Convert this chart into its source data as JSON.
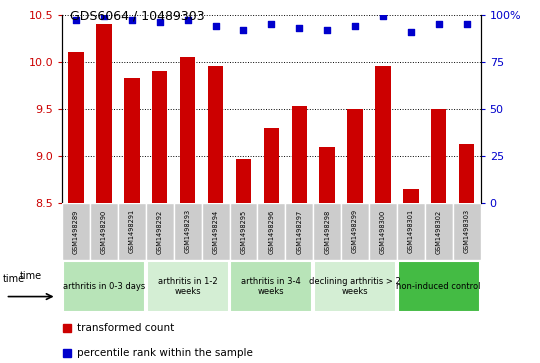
{
  "title": "GDS6064 / 10489303",
  "samples": [
    "GSM1498289",
    "GSM1498290",
    "GSM1498291",
    "GSM1498292",
    "GSM1498293",
    "GSM1498294",
    "GSM1498295",
    "GSM1498296",
    "GSM1498297",
    "GSM1498298",
    "GSM1498299",
    "GSM1498300",
    "GSM1498301",
    "GSM1498302",
    "GSM1498303"
  ],
  "bar_values": [
    10.1,
    10.4,
    9.83,
    9.9,
    10.05,
    9.95,
    8.97,
    9.3,
    9.53,
    9.1,
    9.5,
    9.95,
    8.65,
    9.5,
    9.13
  ],
  "percentile_values": [
    97,
    99,
    97,
    96,
    97,
    94,
    92,
    95,
    93,
    92,
    94,
    99,
    91,
    95,
    95
  ],
  "bar_color": "#cc0000",
  "percentile_color": "#0000cc",
  "ylim_left": [
    8.5,
    10.5
  ],
  "ylim_right": [
    0,
    100
  ],
  "yticks_left": [
    8.5,
    9.0,
    9.5,
    10.0,
    10.5
  ],
  "yticks_right": [
    0,
    25,
    50,
    75,
    100
  ],
  "groups": [
    {
      "label": "arthritis in 0-3 days",
      "start": 0,
      "end": 3,
      "color": "#b8e4b8"
    },
    {
      "label": "arthritis in 1-2\nweeks",
      "start": 3,
      "end": 6,
      "color": "#d4eed4"
    },
    {
      "label": "arthritis in 3-4\nweeks",
      "start": 6,
      "end": 9,
      "color": "#b8e4b8"
    },
    {
      "label": "declining arthritis > 2\nweeks",
      "start": 9,
      "end": 12,
      "color": "#d4eed4"
    },
    {
      "label": "non-induced control",
      "start": 12,
      "end": 15,
      "color": "#44bb44"
    }
  ],
  "legend_items": [
    {
      "label": "transformed count",
      "color": "#cc0000"
    },
    {
      "label": "percentile rank within the sample",
      "color": "#0000cc"
    }
  ],
  "background_color": "#ffffff",
  "bar_width": 0.55,
  "tick_label_color_left": "#cc0000",
  "tick_label_color_right": "#0000cc",
  "sample_box_color": "#cccccc",
  "bar_baseline": 8.5
}
